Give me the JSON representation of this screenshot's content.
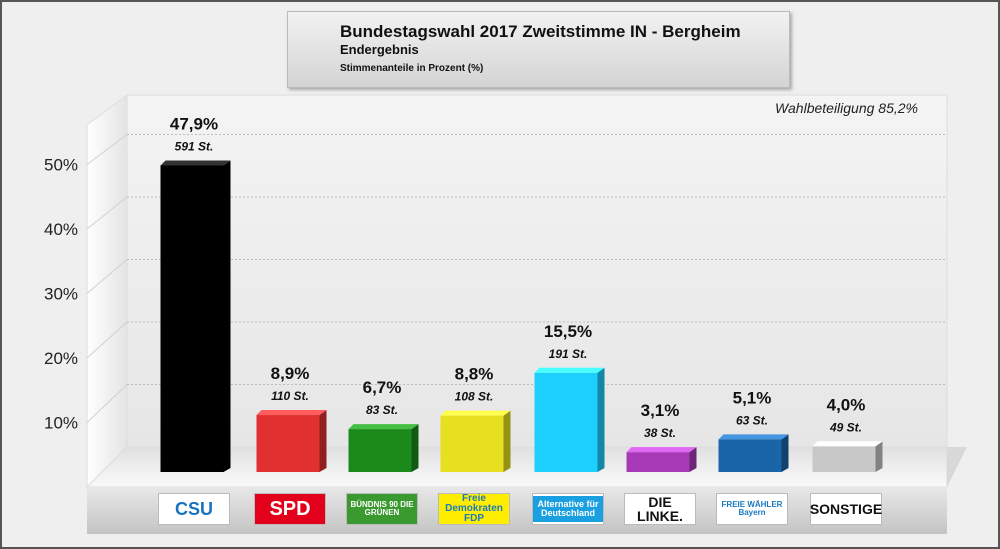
{
  "title": "Bundestagswahl 2017 Zweitstimme IN - Bergheim",
  "subtitle": "Endergebnis",
  "note": "Stimmenanteile in Prozent (%)",
  "turnout": "Wahlbeteiligung 85,2%",
  "chart_data": {
    "type": "bar",
    "style": "3d",
    "categories": [
      "CSU",
      "SPD",
      "BÜNDNIS 90 DIE GRÜNEN",
      "Freie Demokraten FDP",
      "Alternative für Deutschland",
      "DIE LINKE.",
      "FREIE WÄHLER Bayern",
      "SONSTIGE"
    ],
    "values": [
      47.9,
      8.9,
      6.7,
      8.8,
      15.5,
      3.1,
      5.1,
      4.0
    ],
    "value_labels": [
      "47,9%",
      "8,9%",
      "6,7%",
      "8,8%",
      "15,5%",
      "3,1%",
      "5,1%",
      "4,0%"
    ],
    "vote_labels": [
      "591 St.",
      "110 St.",
      "83 St.",
      "108 St.",
      "191 St.",
      "38 St.",
      "63 St.",
      "49 St."
    ],
    "colors": [
      "#000000",
      "#e03030",
      "#1a8a1a",
      "#e6e020",
      "#1ccfff",
      "#a83ab8",
      "#1a64a8",
      "#c8c8c8"
    ],
    "yticks": [
      "10%",
      "20%",
      "30%",
      "40%",
      "50%"
    ],
    "ylim": [
      0,
      50
    ],
    "grid": true
  }
}
